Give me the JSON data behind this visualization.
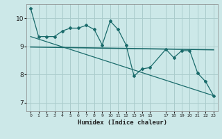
{
  "xlabel": "Humidex (Indice chaleur)",
  "background_color": "#cce8e8",
  "grid_color": "#aacccc",
  "line_color": "#1a6b6b",
  "x_ticks": [
    0,
    1,
    2,
    3,
    4,
    5,
    6,
    7,
    8,
    9,
    10,
    11,
    12,
    13,
    14,
    15,
    17,
    18,
    19,
    20,
    21,
    22,
    23
  ],
  "x_tick_labels": [
    "0",
    "1",
    "2",
    "3",
    "4",
    "5",
    "6",
    "7",
    "8",
    "9",
    "10",
    "11",
    "12",
    "13",
    "14",
    "15",
    "17",
    "18",
    "19",
    "20",
    "21",
    "22",
    "23"
  ],
  "ylim": [
    6.7,
    10.5
  ],
  "xlim": [
    -0.5,
    23.5
  ],
  "yticks": [
    7,
    8,
    9,
    10
  ],
  "series1_x": [
    0,
    1,
    2,
    3,
    4,
    5,
    6,
    7,
    8,
    9,
    10,
    11,
    12,
    13,
    14,
    15,
    17,
    18,
    19,
    20,
    21,
    22,
    23
  ],
  "series1_y": [
    10.35,
    9.35,
    9.35,
    9.35,
    9.55,
    9.65,
    9.65,
    9.75,
    9.6,
    9.05,
    9.9,
    9.6,
    9.05,
    7.95,
    8.2,
    8.25,
    8.9,
    8.6,
    8.85,
    8.85,
    8.05,
    7.75,
    7.25
  ],
  "series2_x": [
    0,
    23
  ],
  "series2_y": [
    8.98,
    8.88
  ],
  "series3_x": [
    0,
    23
  ],
  "series3_y": [
    9.35,
    7.25
  ]
}
